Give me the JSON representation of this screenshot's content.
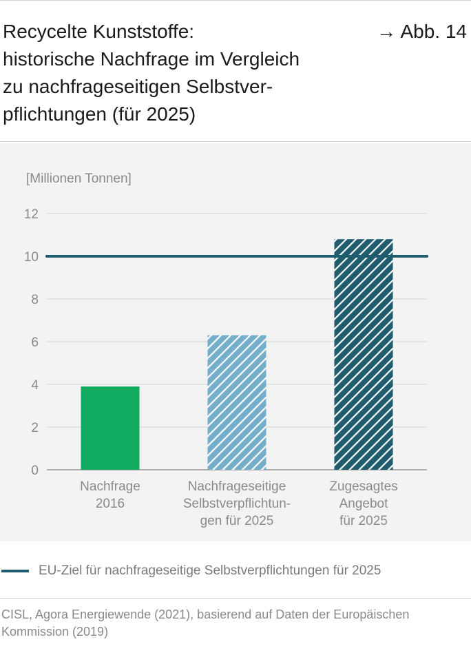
{
  "header": {
    "title_lines": [
      "Recycelte Kunststoffe:",
      "historische Nachfrage im Vergleich",
      "zu nachfrageseitigen Selbstver-",
      "pflichtungen (für 2025)"
    ],
    "figure_ref": "→ Abb. 14"
  },
  "chart_data": {
    "type": "bar",
    "unit_label": "[Millionen Tonnen]",
    "ylim": [
      0,
      12
    ],
    "yticks": [
      "0",
      "2",
      "4",
      "6",
      "8",
      "10",
      "12"
    ],
    "grid": true,
    "categories": [
      [
        "Nachfrage",
        "2016"
      ],
      [
        "Nachfrageseitige",
        "Selbstverpflichtun-",
        "gen für 2025"
      ],
      [
        "Zugesagtes",
        "Angebot",
        "für 2025"
      ]
    ],
    "values": [
      3.9,
      6.3,
      10.8
    ],
    "bar_styles": [
      {
        "fill": "#12ac61",
        "hatched": false
      },
      {
        "fill": "#74aecb",
        "hatched": true
      },
      {
        "fill": "#1e5c6e",
        "hatched": true
      }
    ],
    "reference_line": {
      "value": 10,
      "color": "#1e5c6e"
    },
    "legend": [
      {
        "label": "EU-Ziel für nachfrageseitige Selbstverpflichtungen für 2025",
        "color": "#1e5c6e"
      }
    ]
  },
  "footer": {
    "source_lines": [
      "CISL, Agora Energiewende (2021), basierend auf Daten der Europäischen",
      "Kommission (2019)"
    ]
  }
}
